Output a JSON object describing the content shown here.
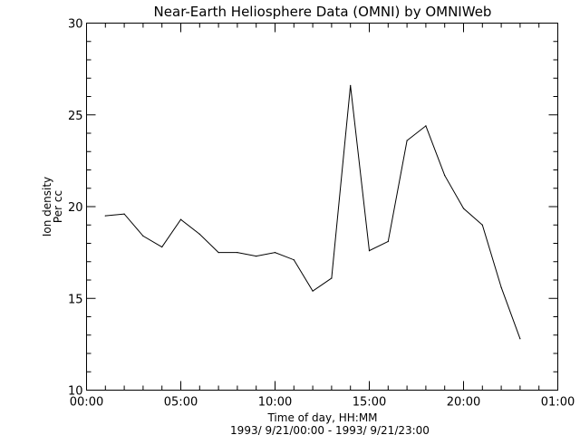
{
  "chart_data": {
    "type": "line",
    "title": "Near-Earth Heliosphere Data (OMNI) by OMNIWeb",
    "xlabel": "Time of day, HH:MM",
    "xlabel_sub": "1993/ 9/21/00:00 - 1993/ 9/21/23:00",
    "ylabel": "Ion density",
    "ylabel_sub": "Per cc",
    "xlim_hours": [
      0,
      25
    ],
    "ylim": [
      10,
      30
    ],
    "x_ticks": [
      {
        "hour": 0,
        "label": "00:00"
      },
      {
        "hour": 5,
        "label": "05:00"
      },
      {
        "hour": 10,
        "label": "10:00"
      },
      {
        "hour": 15,
        "label": "15:00"
      },
      {
        "hour": 20,
        "label": "20:00"
      },
      {
        "hour": 25,
        "label": "01:00"
      }
    ],
    "y_ticks": [
      {
        "value": 10,
        "label": "10"
      },
      {
        "value": 15,
        "label": "15"
      },
      {
        "value": 20,
        "label": "20"
      },
      {
        "value": 25,
        "label": "25"
      },
      {
        "value": 30,
        "label": "30"
      }
    ],
    "grid": false,
    "series": [
      {
        "x_hours": [
          1,
          2,
          3,
          4,
          5,
          6,
          7,
          8,
          9,
          10,
          11,
          12,
          13,
          14,
          15,
          16,
          17,
          18,
          19,
          20,
          21,
          22,
          23
        ],
        "values": [
          19.5,
          19.6,
          18.4,
          17.8,
          19.3,
          18.5,
          17.5,
          17.5,
          17.3,
          17.5,
          17.1,
          15.4,
          16.1,
          26.6,
          17.6,
          18.1,
          23.6,
          24.4,
          21.7,
          19.9,
          19.0,
          15.6,
          12.8
        ]
      }
    ]
  }
}
